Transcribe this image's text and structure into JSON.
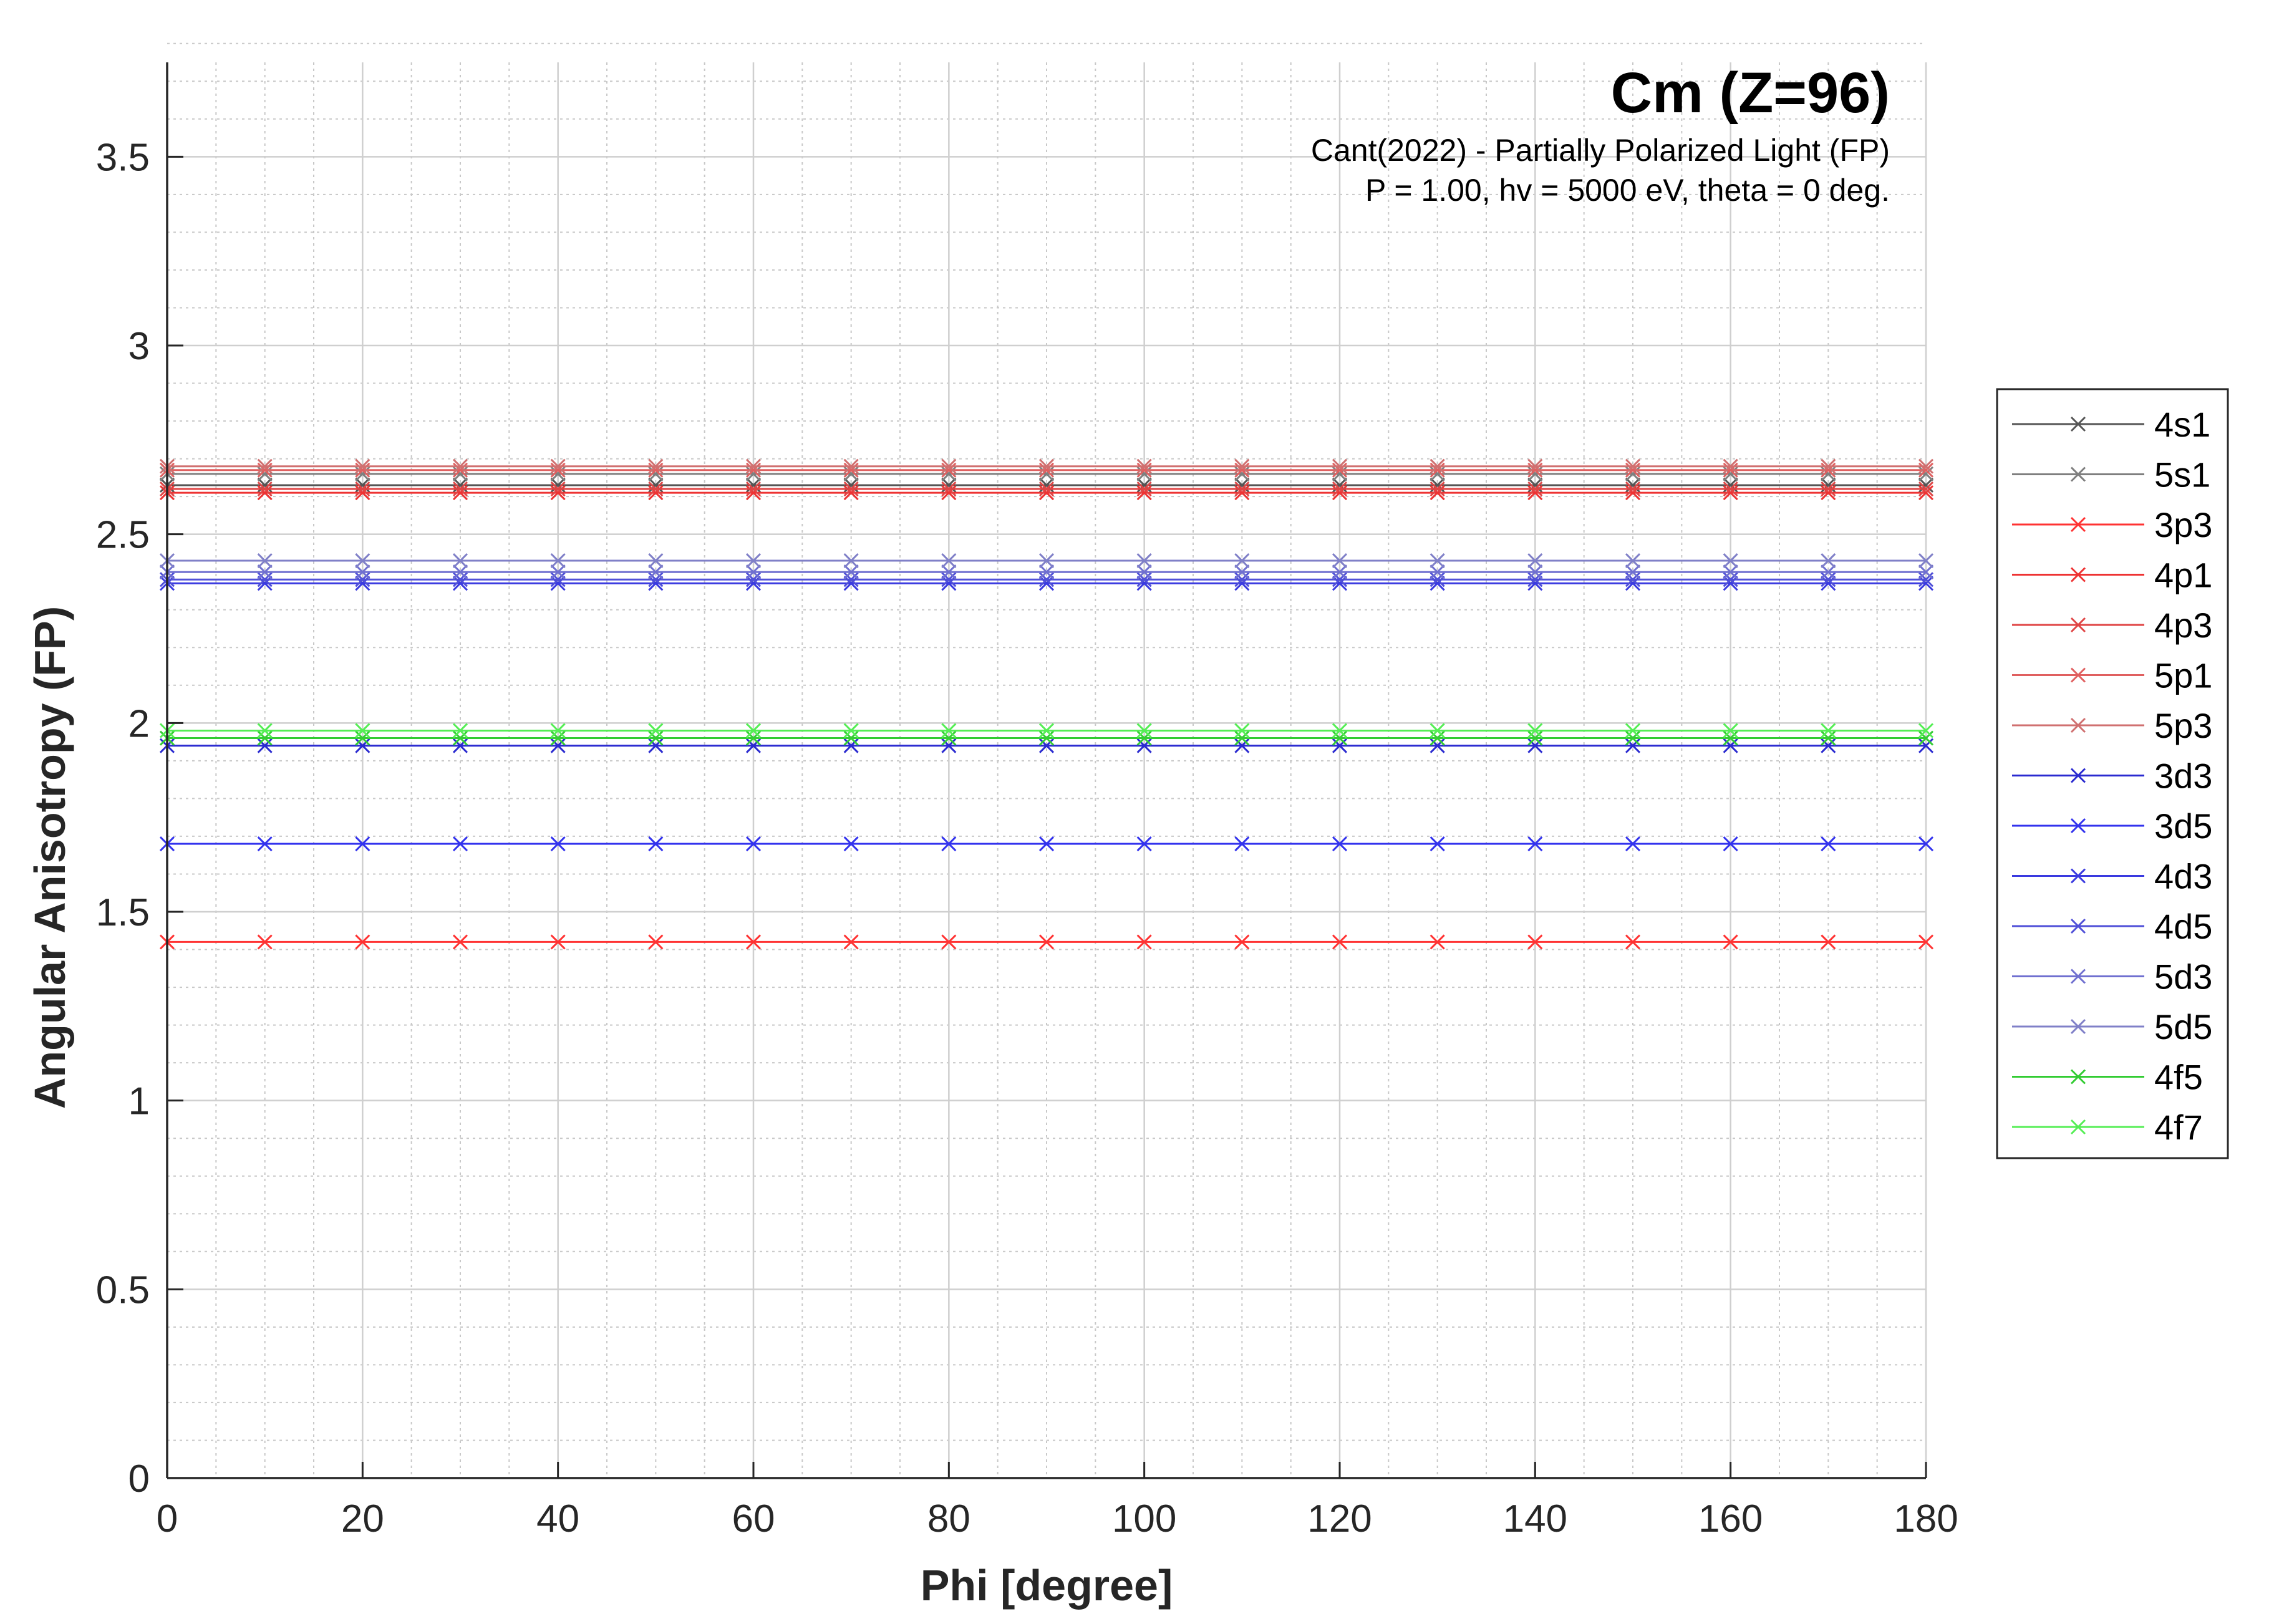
{
  "chart_data": {
    "type": "line",
    "title": "Cm (Z=96)",
    "subtitle_lines": [
      "Cant(2022) - Partially Polarized Light (FP)",
      "P = 1.00, hv = 5000 eV, theta = 0 deg."
    ],
    "xlabel": "Phi [degree]",
    "ylabel": "Angular Anisotropy (FP)",
    "xlim": [
      0,
      180
    ],
    "ylim": [
      0,
      3.75
    ],
    "x_ticks": [
      0,
      20,
      40,
      60,
      80,
      100,
      120,
      140,
      160,
      180
    ],
    "y_ticks": [
      0,
      0.5,
      1,
      1.5,
      2,
      2.5,
      3,
      3.5
    ],
    "x_tick_labels": [
      "0",
      "20",
      "40",
      "60",
      "80",
      "100",
      "120",
      "140",
      "160",
      "180"
    ],
    "y_tick_labels": [
      "0",
      "0.5",
      "1",
      "1.5",
      "2",
      "2.5",
      "3",
      "3.5"
    ],
    "grid": true,
    "minor_grid": true,
    "legend_position": "outside-right",
    "marker": "x",
    "x": [
      0,
      10,
      20,
      30,
      40,
      50,
      60,
      70,
      80,
      90,
      100,
      110,
      120,
      130,
      140,
      150,
      160,
      170,
      180
    ],
    "series": [
      {
        "name": "4s1",
        "value": 2.63,
        "color": "#555555"
      },
      {
        "name": "5s1",
        "value": 2.66,
        "color": "#7f7f7f"
      },
      {
        "name": "3p3",
        "value": 1.42,
        "color": "#ff3333"
      },
      {
        "name": "4p1",
        "value": 2.61,
        "color": "#ee3333"
      },
      {
        "name": "4p3",
        "value": 2.62,
        "color": "#e04545"
      },
      {
        "name": "5p1",
        "value": 2.67,
        "color": "#e06060"
      },
      {
        "name": "5p3",
        "value": 2.68,
        "color": "#d07070"
      },
      {
        "name": "3d3",
        "value": 1.94,
        "color": "#2a2ad0"
      },
      {
        "name": "3d5",
        "value": 1.68,
        "color": "#3333ee"
      },
      {
        "name": "4d3",
        "value": 2.37,
        "color": "#3a3ae0"
      },
      {
        "name": "4d5",
        "value": 2.38,
        "color": "#5050d8"
      },
      {
        "name": "5d3",
        "value": 2.4,
        "color": "#7070d0"
      },
      {
        "name": "5d5",
        "value": 2.43,
        "color": "#8080c8"
      },
      {
        "name": "4f5",
        "value": 1.96,
        "color": "#33cc33"
      },
      {
        "name": "4f7",
        "value": 1.98,
        "color": "#55ee55"
      }
    ]
  }
}
